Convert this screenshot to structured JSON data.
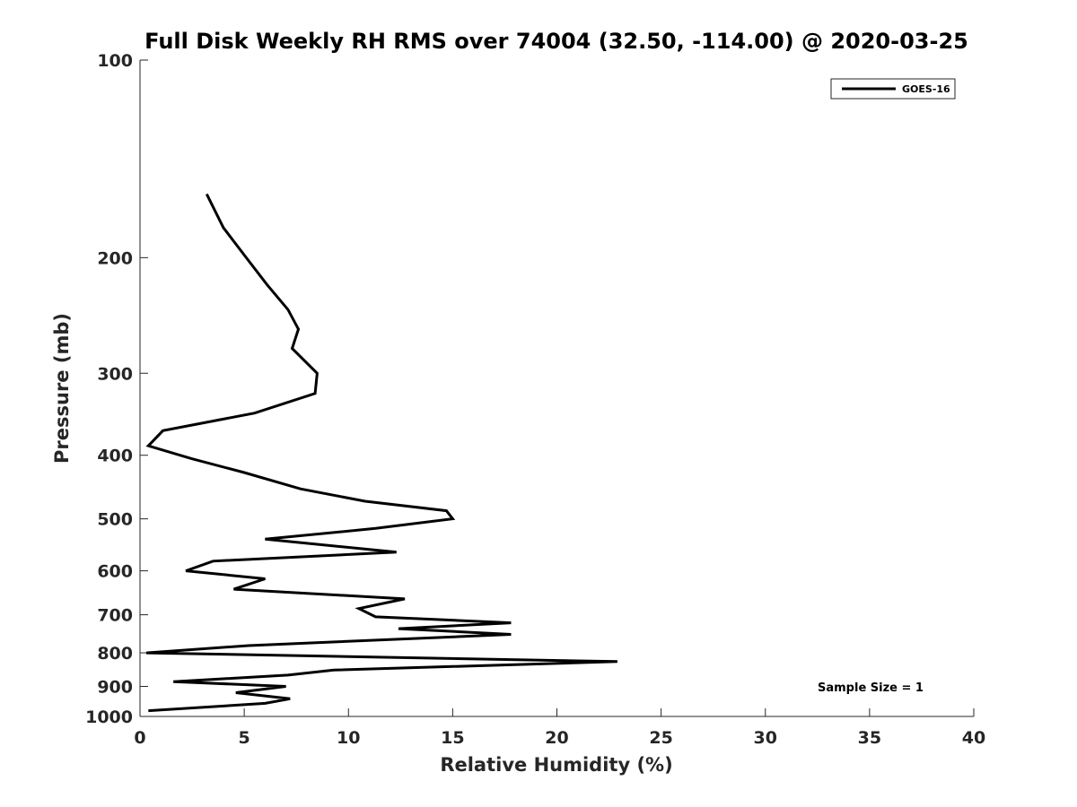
{
  "chart_data": {
    "type": "line",
    "title": "Full Disk Weekly RH RMS over 74004 (32.50, -114.00) @ 2020-03-25",
    "xlabel": "Relative Humidity (%)",
    "ylabel": "Pressure (mb)",
    "xlim": [
      0,
      40
    ],
    "ylim": [
      100,
      1000
    ],
    "y_scale": "log",
    "y_reversed": true,
    "grid": false,
    "xticks": [
      0,
      5,
      10,
      15,
      20,
      25,
      30,
      35,
      40
    ],
    "yticks": [
      100,
      200,
      300,
      400,
      500,
      600,
      700,
      800,
      900,
      1000
    ],
    "legend_position": "top-right",
    "annotation": "Sample Size = 1",
    "line_color": "#000000",
    "series": [
      {
        "name": "GOES-16",
        "points": [
          [
            3.2,
            160
          ],
          [
            4.0,
            180
          ],
          [
            5.1,
            200
          ],
          [
            6.1,
            220
          ],
          [
            7.1,
            240
          ],
          [
            7.6,
            257
          ],
          [
            7.3,
            275
          ],
          [
            8.5,
            300
          ],
          [
            8.4,
            322
          ],
          [
            5.5,
            345
          ],
          [
            1.1,
            367
          ],
          [
            0.4,
            387
          ],
          [
            2.5,
            405
          ],
          [
            5.0,
            425
          ],
          [
            7.7,
            450
          ],
          [
            10.8,
            470
          ],
          [
            14.7,
            486
          ],
          [
            15.0,
            500
          ],
          [
            11.3,
            517
          ],
          [
            6.0,
            537
          ],
          [
            12.3,
            562
          ],
          [
            3.5,
            580
          ],
          [
            2.2,
            600
          ],
          [
            6.0,
            617
          ],
          [
            4.5,
            640
          ],
          [
            12.7,
            662
          ],
          [
            10.5,
            685
          ],
          [
            11.3,
            705
          ],
          [
            17.8,
            720
          ],
          [
            12.4,
            735
          ],
          [
            17.8,
            750
          ],
          [
            5.2,
            780
          ],
          [
            0.3,
            800
          ],
          [
            22.9,
            825
          ],
          [
            9.3,
            850
          ],
          [
            7.1,
            865
          ],
          [
            1.6,
            885
          ],
          [
            7.0,
            900
          ],
          [
            4.6,
            920
          ],
          [
            7.2,
            940
          ],
          [
            6.0,
            955
          ],
          [
            0.4,
            980
          ]
        ]
      }
    ]
  }
}
